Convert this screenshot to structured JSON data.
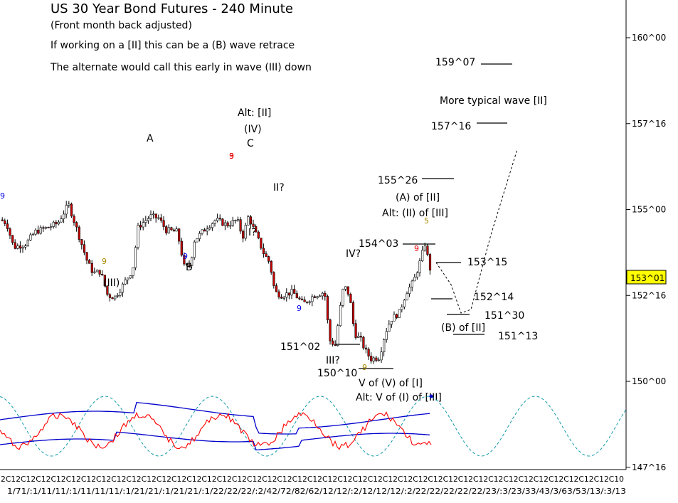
{
  "header": {
    "title": "US 30 Year Bond Futures - 240 Minute",
    "subtitle": "(Front month back adjusted)",
    "note1": "If working on a [II] this can be a (B) wave retrace",
    "note2": "The alternate would call this early in wave (III) down"
  },
  "chart_data": {
    "type": "candlestick",
    "price_scale": {
      "ticks": [
        "160^00",
        "157^16",
        "155^00",
        "152^16",
        "150^00",
        "147^16"
      ],
      "current_price_label": "153^01",
      "current_price_color": "#ffff00"
    },
    "x_tick_labels_top": "2C12C12C12C12C12C12C12C12C12C12C12C12C12C12C12C12C12C12C12C12C12C12C12C12C12C12C12C12C12C12C12C12C12C12C12C12C12C12C12C12C10",
    "x_tick_labels_bottom": "1/71/:1/11/11/:1/11/11/11/:1/21/21/:1/21/21/:1/22/22/22/:2/42/72/82/62/12/12/:2/12/12/12/:2/22/22/22/22/22/23/:3/23/33/43/3/63/53/13/:3/13",
    "annotations": {
      "wave_labels": [
        "A",
        "Alt: [II]",
        "(IV)",
        "C",
        "II?",
        "I?",
        "B",
        "(III)",
        "IV?",
        "III?",
        "V of (V) of [I]",
        "Alt: V of (I) of [III]",
        "(A) of [II]",
        "Alt: (II) of [III]",
        "(B) of [II]",
        "More typical wave [II]"
      ],
      "price_levels": [
        "159^07",
        "157^16",
        "155^26",
        "154^03",
        "153^15",
        "152^14",
        "151^30",
        "151^13",
        "151^02",
        "150^10"
      ],
      "counts": [
        "9",
        "9",
        "9",
        "9",
        "9",
        "9",
        "9",
        "5",
        "3"
      ]
    },
    "indicator": {
      "series": [
        "cycle oscillator (red)",
        "upper band (blue)",
        "lower band (blue)",
        "projected cycle (dashed teal)"
      ]
    },
    "colors": {
      "up_candle": "#ffffff",
      "down_candle": "#cc0000",
      "candle_outline": "#000000",
      "oscillator": "#ff0000",
      "bands": "#0000cc",
      "projected_cycle": "#1199aa",
      "count_red": "#ee0000",
      "count_blue": "#0000ee",
      "count_gold": "#aa8800"
    }
  }
}
